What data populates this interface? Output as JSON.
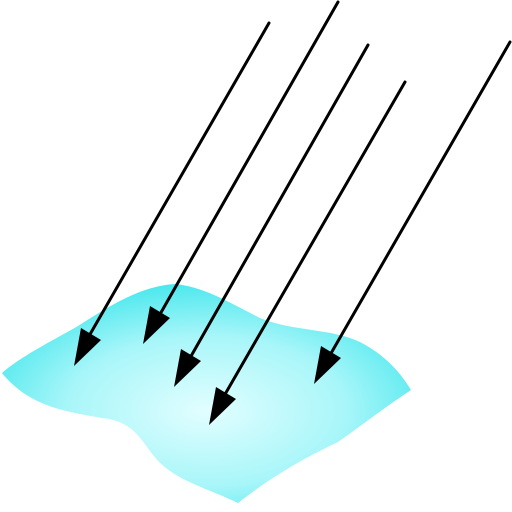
{
  "diagram": {
    "surface": {
      "edge_color": "#3EE6EC",
      "center_color": "#E2FEFF"
    },
    "arrows": {
      "count": 5,
      "color": "#000000"
    }
  }
}
